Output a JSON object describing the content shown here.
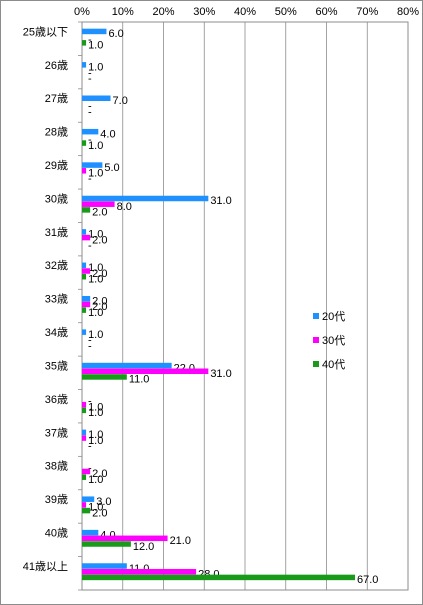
{
  "chart_data": {
    "type": "bar",
    "orientation": "horizontal",
    "categories": [
      "25歳以下",
      "26歳",
      "27歳",
      "28歳",
      "29歳",
      "30歳",
      "31歳",
      "32歳",
      "33歳",
      "34歳",
      "35歳",
      "36歳",
      "37歳",
      "38歳",
      "39歳",
      "40歳",
      "41歳以上"
    ],
    "series": [
      {
        "name": "20代",
        "color": "#1e90ff",
        "values": [
          6.0,
          1.0,
          7.0,
          4.0,
          5.0,
          31.0,
          1.0,
          1.0,
          2.0,
          1.0,
          22.0,
          null,
          1.0,
          null,
          3.0,
          4.0,
          11.0
        ]
      },
      {
        "name": "30代",
        "color": "#ff00ff",
        "values": [
          null,
          null,
          null,
          null,
          1.0,
          8.0,
          2.0,
          2.0,
          2.0,
          null,
          31.0,
          1.0,
          1.0,
          2.0,
          1.0,
          21.0,
          28.0
        ]
      },
      {
        "name": "40代",
        "color": "#1a9a1a",
        "values": [
          1.0,
          null,
          null,
          1.0,
          null,
          2.0,
          null,
          1.0,
          1.0,
          null,
          11.0,
          1.0,
          null,
          1.0,
          2.0,
          12.0,
          67.0
        ]
      }
    ],
    "missing_label": "-",
    "xlim": [
      0,
      80
    ],
    "x_ticks": [
      "0%",
      "10%",
      "20%",
      "30%",
      "40%",
      "50%",
      "60%",
      "70%",
      "80%"
    ],
    "x_tick_values": [
      0,
      10,
      20,
      30,
      40,
      50,
      60,
      70,
      80
    ],
    "grid": true,
    "legend_position": "right"
  }
}
